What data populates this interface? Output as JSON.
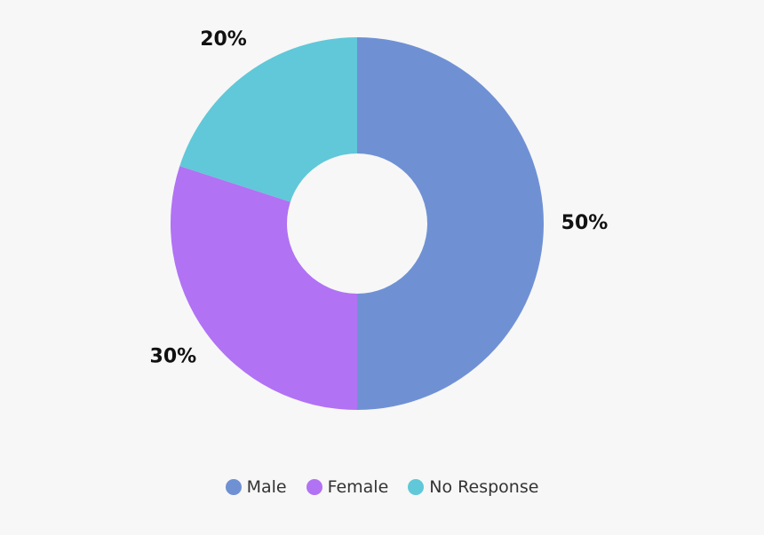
{
  "chart_data": {
    "type": "pie",
    "variant": "donut",
    "categories": [
      "Male",
      "Female",
      "No Response"
    ],
    "values": [
      50,
      30,
      20
    ],
    "unit": "%",
    "data_labels": [
      "50%",
      "30%",
      "20%"
    ],
    "colors": [
      "#6f91d4",
      "#b172f4",
      "#60c8d8"
    ],
    "start_angle_deg": 0,
    "direction": "clockwise",
    "legend_placement": "bottom"
  }
}
